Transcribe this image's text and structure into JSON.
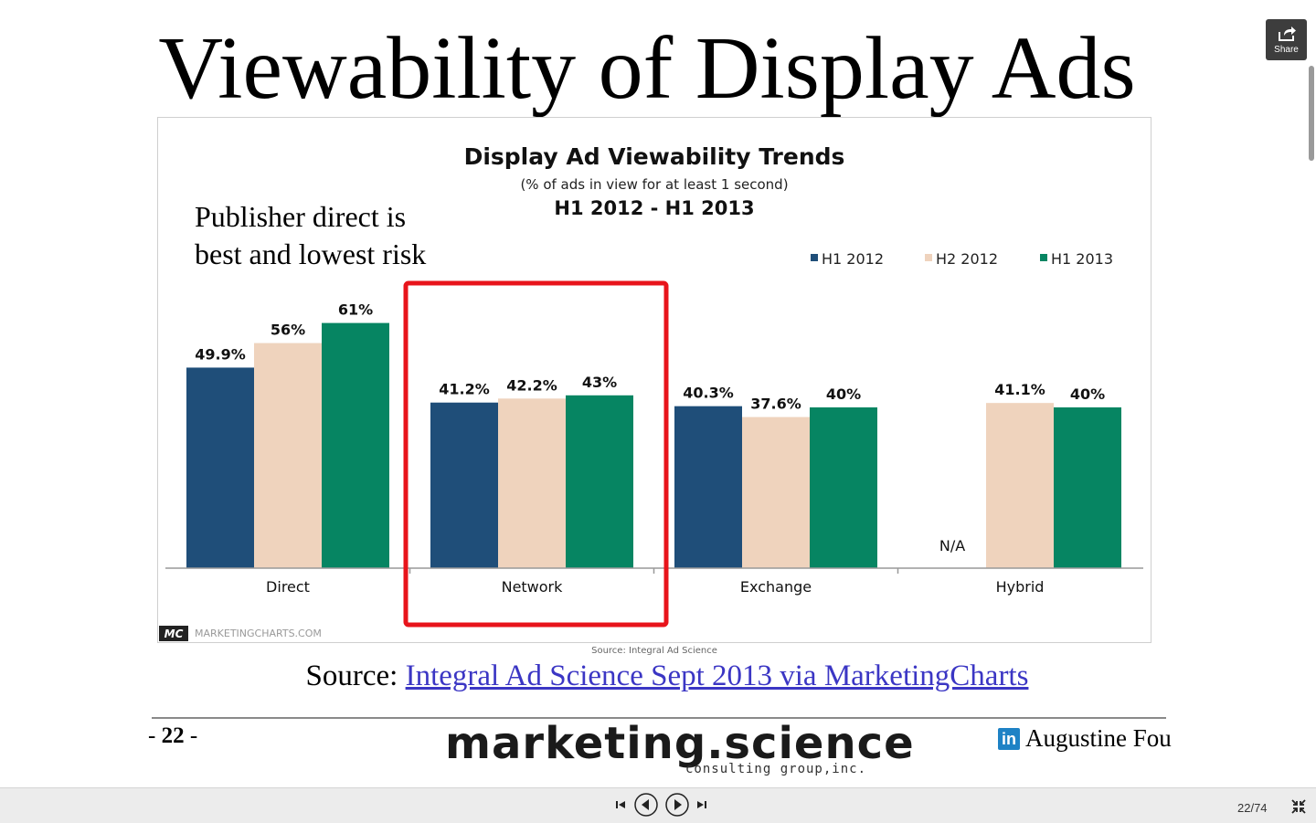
{
  "slide": {
    "title": "Viewability of Display Ads",
    "annotation": "Publisher direct is best and lowest risk",
    "source_prefix": "Source: ",
    "source_link": "Integral Ad Science Sept 2013 via MarketingCharts",
    "page_number": "22",
    "brand": "marketing.science",
    "brand_sub": "consulting group,inc.",
    "author": "Augustine Fou",
    "linkedin_icon": "in"
  },
  "share": {
    "label": "Share"
  },
  "player": {
    "counter": "22/74"
  },
  "chart_data": {
    "type": "bar",
    "title": "Display Ad Viewability Trends",
    "subtitle": "(% of ads in view for at least 1 second)",
    "period": "H1 2012 - H1 2013",
    "categories": [
      "Direct",
      "Network",
      "Exchange",
      "Hybrid"
    ],
    "series": [
      {
        "name": "H1 2012",
        "values": [
          49.9,
          41.2,
          40.3,
          null
        ],
        "labels": [
          "49.9%",
          "41.2%",
          "40.3%",
          "N/A"
        ],
        "color": "#1f4e79"
      },
      {
        "name": "H2 2012",
        "values": [
          56,
          42.2,
          37.6,
          41.1
        ],
        "labels": [
          "56%",
          "42.2%",
          "37.6%",
          "41.1%"
        ],
        "color": "#efd3bd"
      },
      {
        "name": "H1 2013",
        "values": [
          61,
          43,
          40,
          40
        ],
        "labels": [
          "61%",
          "43%",
          "40%",
          "40%"
        ],
        "color": "#068562"
      }
    ],
    "ylim": [
      0,
      70
    ],
    "grid": false,
    "legend": "top-right",
    "highlighted_category": "Network",
    "logo_text": "MC",
    "watermark": "MARKETINGCHARTS.COM",
    "source_note": "Source: Integral Ad Science"
  }
}
